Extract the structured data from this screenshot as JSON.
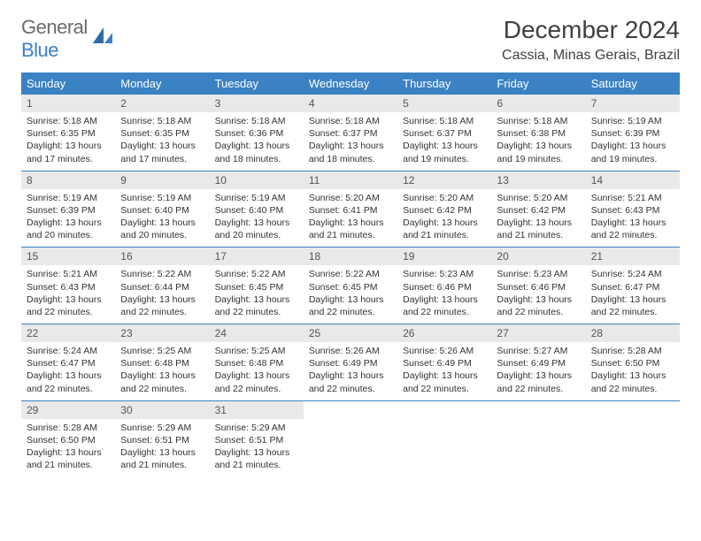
{
  "brand": {
    "text1": "General",
    "text2": "Blue"
  },
  "title": "December 2024",
  "location": "Cassia, Minas Gerais, Brazil",
  "colors": {
    "header_bg": "#3b82c4",
    "header_text": "#ffffff",
    "daynum_bg": "#e9e9e9",
    "row_border": "#3b82c4",
    "body_text": "#333333",
    "logo_gray": "#6b6b6b",
    "logo_blue": "#3b82c4"
  },
  "weekdays": [
    "Sunday",
    "Monday",
    "Tuesday",
    "Wednesday",
    "Thursday",
    "Friday",
    "Saturday"
  ],
  "weeks": [
    [
      {
        "n": "1",
        "sr": "5:18 AM",
        "ss": "6:35 PM",
        "dl": "13 hours and 17 minutes."
      },
      {
        "n": "2",
        "sr": "5:18 AM",
        "ss": "6:35 PM",
        "dl": "13 hours and 17 minutes."
      },
      {
        "n": "3",
        "sr": "5:18 AM",
        "ss": "6:36 PM",
        "dl": "13 hours and 18 minutes."
      },
      {
        "n": "4",
        "sr": "5:18 AM",
        "ss": "6:37 PM",
        "dl": "13 hours and 18 minutes."
      },
      {
        "n": "5",
        "sr": "5:18 AM",
        "ss": "6:37 PM",
        "dl": "13 hours and 19 minutes."
      },
      {
        "n": "6",
        "sr": "5:18 AM",
        "ss": "6:38 PM",
        "dl": "13 hours and 19 minutes."
      },
      {
        "n": "7",
        "sr": "5:19 AM",
        "ss": "6:39 PM",
        "dl": "13 hours and 19 minutes."
      }
    ],
    [
      {
        "n": "8",
        "sr": "5:19 AM",
        "ss": "6:39 PM",
        "dl": "13 hours and 20 minutes."
      },
      {
        "n": "9",
        "sr": "5:19 AM",
        "ss": "6:40 PM",
        "dl": "13 hours and 20 minutes."
      },
      {
        "n": "10",
        "sr": "5:19 AM",
        "ss": "6:40 PM",
        "dl": "13 hours and 20 minutes."
      },
      {
        "n": "11",
        "sr": "5:20 AM",
        "ss": "6:41 PM",
        "dl": "13 hours and 21 minutes."
      },
      {
        "n": "12",
        "sr": "5:20 AM",
        "ss": "6:42 PM",
        "dl": "13 hours and 21 minutes."
      },
      {
        "n": "13",
        "sr": "5:20 AM",
        "ss": "6:42 PM",
        "dl": "13 hours and 21 minutes."
      },
      {
        "n": "14",
        "sr": "5:21 AM",
        "ss": "6:43 PM",
        "dl": "13 hours and 22 minutes."
      }
    ],
    [
      {
        "n": "15",
        "sr": "5:21 AM",
        "ss": "6:43 PM",
        "dl": "13 hours and 22 minutes."
      },
      {
        "n": "16",
        "sr": "5:22 AM",
        "ss": "6:44 PM",
        "dl": "13 hours and 22 minutes."
      },
      {
        "n": "17",
        "sr": "5:22 AM",
        "ss": "6:45 PM",
        "dl": "13 hours and 22 minutes."
      },
      {
        "n": "18",
        "sr": "5:22 AM",
        "ss": "6:45 PM",
        "dl": "13 hours and 22 minutes."
      },
      {
        "n": "19",
        "sr": "5:23 AM",
        "ss": "6:46 PM",
        "dl": "13 hours and 22 minutes."
      },
      {
        "n": "20",
        "sr": "5:23 AM",
        "ss": "6:46 PM",
        "dl": "13 hours and 22 minutes."
      },
      {
        "n": "21",
        "sr": "5:24 AM",
        "ss": "6:47 PM",
        "dl": "13 hours and 22 minutes."
      }
    ],
    [
      {
        "n": "22",
        "sr": "5:24 AM",
        "ss": "6:47 PM",
        "dl": "13 hours and 22 minutes."
      },
      {
        "n": "23",
        "sr": "5:25 AM",
        "ss": "6:48 PM",
        "dl": "13 hours and 22 minutes."
      },
      {
        "n": "24",
        "sr": "5:25 AM",
        "ss": "6:48 PM",
        "dl": "13 hours and 22 minutes."
      },
      {
        "n": "25",
        "sr": "5:26 AM",
        "ss": "6:49 PM",
        "dl": "13 hours and 22 minutes."
      },
      {
        "n": "26",
        "sr": "5:26 AM",
        "ss": "6:49 PM",
        "dl": "13 hours and 22 minutes."
      },
      {
        "n": "27",
        "sr": "5:27 AM",
        "ss": "6:49 PM",
        "dl": "13 hours and 22 minutes."
      },
      {
        "n": "28",
        "sr": "5:28 AM",
        "ss": "6:50 PM",
        "dl": "13 hours and 22 minutes."
      }
    ],
    [
      {
        "n": "29",
        "sr": "5:28 AM",
        "ss": "6:50 PM",
        "dl": "13 hours and 21 minutes."
      },
      {
        "n": "30",
        "sr": "5:29 AM",
        "ss": "6:51 PM",
        "dl": "13 hours and 21 minutes."
      },
      {
        "n": "31",
        "sr": "5:29 AM",
        "ss": "6:51 PM",
        "dl": "13 hours and 21 minutes."
      },
      null,
      null,
      null,
      null
    ]
  ],
  "labels": {
    "sunrise": "Sunrise:",
    "sunset": "Sunset:",
    "daylight": "Daylight:"
  }
}
